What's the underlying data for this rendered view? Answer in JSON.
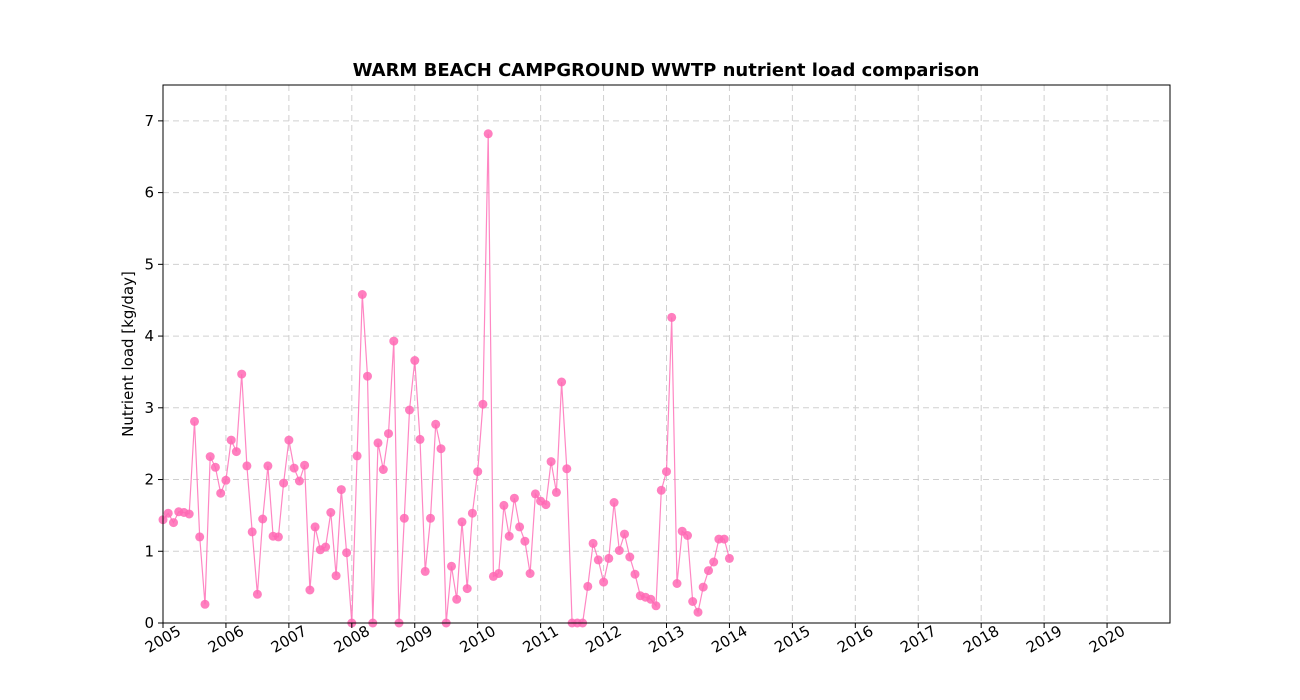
{
  "chart_data": {
    "type": "line",
    "title": "WARM BEACH CAMPGROUND WWTP nutrient load comparison",
    "xlabel": "",
    "ylabel": "Nutrient load [kg/day]",
    "xlim": [
      "2005-01-01",
      "2021-01-01"
    ],
    "ylim": [
      0,
      7.5
    ],
    "yticks": [
      0,
      1,
      2,
      3,
      4,
      5,
      6,
      7
    ],
    "xticks": [
      "2005",
      "2006",
      "2007",
      "2008",
      "2009",
      "2010",
      "2011",
      "2012",
      "2013",
      "2014",
      "2015",
      "2016",
      "2017",
      "2018",
      "2019",
      "2020"
    ],
    "grid": true,
    "series": [
      {
        "color": "#ff69b4",
        "marker": "circle",
        "x": [
          "2005-01",
          "2005-02",
          "2005-03",
          "2005-04",
          "2005-05",
          "2005-06",
          "2005-07",
          "2005-08",
          "2005-09",
          "2005-10",
          "2005-11",
          "2005-12",
          "2006-01",
          "2006-02",
          "2006-03",
          "2006-04",
          "2006-05",
          "2006-06",
          "2006-07",
          "2006-08",
          "2006-09",
          "2006-10",
          "2006-11",
          "2006-12",
          "2007-01",
          "2007-02",
          "2007-03",
          "2007-04",
          "2007-05",
          "2007-06",
          "2007-07",
          "2007-08",
          "2007-09",
          "2007-10",
          "2007-11",
          "2007-12",
          "2008-01",
          "2008-02",
          "2008-03",
          "2008-04",
          "2008-05",
          "2008-06",
          "2008-07",
          "2008-08",
          "2008-09",
          "2008-10",
          "2008-11",
          "2008-12",
          "2009-01",
          "2009-02",
          "2009-03",
          "2009-04",
          "2009-05",
          "2009-06",
          "2009-07",
          "2009-08",
          "2009-09",
          "2009-10",
          "2009-11",
          "2009-12",
          "2010-01",
          "2010-02",
          "2010-03",
          "2010-04",
          "2010-05",
          "2010-06",
          "2010-07",
          "2010-08",
          "2010-09",
          "2010-10",
          "2010-11",
          "2010-12",
          "2011-01",
          "2011-02",
          "2011-03",
          "2011-04",
          "2011-05",
          "2011-06",
          "2011-07",
          "2011-08",
          "2011-09",
          "2011-10",
          "2011-11",
          "2011-12",
          "2012-01",
          "2012-02",
          "2012-03",
          "2012-04",
          "2012-05",
          "2012-06",
          "2012-07",
          "2012-08",
          "2012-09",
          "2012-10",
          "2012-11",
          "2012-12",
          "2013-01",
          "2013-02",
          "2013-03",
          "2013-04",
          "2013-05",
          "2013-06",
          "2013-07",
          "2013-08",
          "2013-09",
          "2013-10",
          "2013-11",
          "2013-12",
          "2014-01"
        ],
        "y": [
          1.44,
          1.53,
          1.4,
          1.55,
          1.54,
          1.52,
          2.81,
          1.2,
          0.26,
          2.32,
          2.17,
          1.81,
          1.99,
          2.55,
          2.39,
          3.47,
          2.19,
          1.27,
          0.4,
          1.45,
          2.19,
          1.21,
          1.2,
          1.95,
          2.55,
          2.16,
          1.98,
          2.2,
          0.46,
          1.34,
          1.02,
          1.06,
          1.54,
          0.66,
          1.86,
          0.98,
          0.0,
          2.33,
          4.58,
          3.44,
          0.0,
          2.51,
          2.14,
          2.64,
          3.93,
          0.0,
          1.46,
          2.97,
          3.66,
          2.56,
          0.72,
          1.46,
          2.77,
          2.43,
          0.0,
          0.79,
          0.33,
          1.41,
          0.48,
          1.53,
          2.11,
          3.05,
          6.82,
          0.65,
          0.69,
          1.64,
          1.21,
          1.74,
          1.34,
          1.14,
          0.69,
          1.8,
          1.7,
          1.65,
          2.25,
          1.82,
          3.36,
          2.15,
          0.0,
          0.0,
          0.0,
          0.51,
          1.11,
          0.88,
          0.57,
          0.9,
          1.68,
          1.01,
          1.24,
          0.92,
          0.68,
          0.38,
          0.36,
          0.33,
          0.24,
          1.85,
          2.11,
          4.26,
          0.55,
          1.28,
          1.22,
          0.3,
          0.15,
          0.5,
          0.73,
          0.85,
          1.17,
          1.17,
          0.9
        ]
      }
    ]
  }
}
